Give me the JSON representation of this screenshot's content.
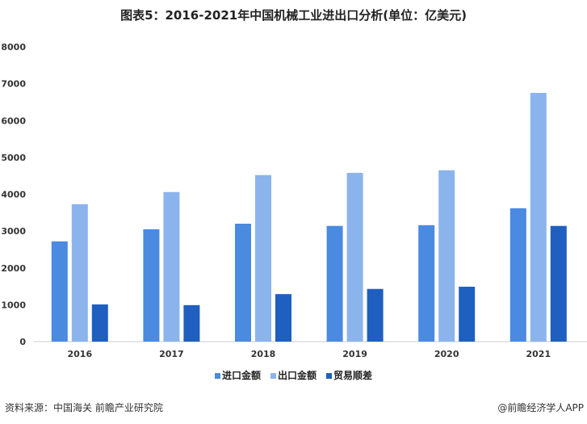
{
  "chart_data": {
    "type": "bar",
    "title": "图表5：2016-2021年中国机械工业进出口分析(单位：亿美元)",
    "categories": [
      "2016",
      "2017",
      "2018",
      "2019",
      "2020",
      "2021"
    ],
    "series": [
      {
        "name": "进口金额",
        "color": "#4a8ae0",
        "values": [
          2720,
          3050,
          3200,
          3140,
          3160,
          3620
        ]
      },
      {
        "name": "出口金额",
        "color": "#8cb4ec",
        "values": [
          3730,
          4060,
          4520,
          4580,
          4650,
          6750
        ]
      },
      {
        "name": "贸易顺差",
        "color": "#1f5fbf",
        "values": [
          1010,
          990,
          1290,
          1430,
          1490,
          3140
        ]
      }
    ],
    "ylim": [
      0,
      8000
    ],
    "yticks": [
      "0",
      "1000",
      "2000",
      "3000",
      "4000",
      "5000",
      "6000",
      "7000",
      "8000"
    ],
    "xlabel": "",
    "ylabel": "",
    "grid": false,
    "legend": "bottom"
  },
  "footer": {
    "source": "资料来源：中国海关 前瞻产业研究院",
    "credit": "@前瞻经济学人APP"
  }
}
